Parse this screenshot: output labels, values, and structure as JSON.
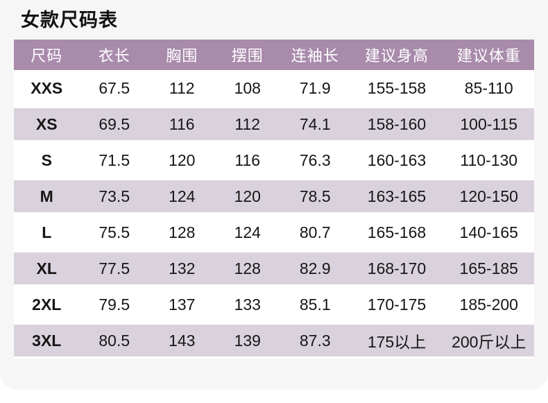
{
  "title": "女款尺码表",
  "chart_data": {
    "type": "table",
    "title": "女款尺码表",
    "columns": [
      "尺码",
      "衣长",
      "胸围",
      "摆围",
      "连袖长",
      "建议身高",
      "建议体重"
    ],
    "rows": [
      [
        "XXS",
        "67.5",
        "112",
        "108",
        "71.9",
        "155-158",
        "85-110"
      ],
      [
        "XS",
        "69.5",
        "116",
        "112",
        "74.1",
        "158-160",
        "100-115"
      ],
      [
        "S",
        "71.5",
        "120",
        "116",
        "76.3",
        "160-163",
        "110-130"
      ],
      [
        "M",
        "73.5",
        "124",
        "120",
        "78.5",
        "163-165",
        "120-150"
      ],
      [
        "L",
        "75.5",
        "128",
        "124",
        "80.7",
        "165-168",
        "140-165"
      ],
      [
        "XL",
        "77.5",
        "132",
        "128",
        "82.9",
        "168-170",
        "165-185"
      ],
      [
        "2XL",
        "79.5",
        "137",
        "133",
        "85.1",
        "170-175",
        "185-200"
      ],
      [
        "3XL",
        "80.5",
        "143",
        "139",
        "87.3",
        "175以上",
        "200斤以上"
      ]
    ]
  },
  "colors": {
    "header_bg": "#a98bac",
    "header_text": "#ffffff",
    "alt_row_bg": "#d9d2dc",
    "row_bg": "#ffffff",
    "card_bg": "#f6f6f6",
    "body_text": "#161616",
    "title_text": "#111111"
  }
}
